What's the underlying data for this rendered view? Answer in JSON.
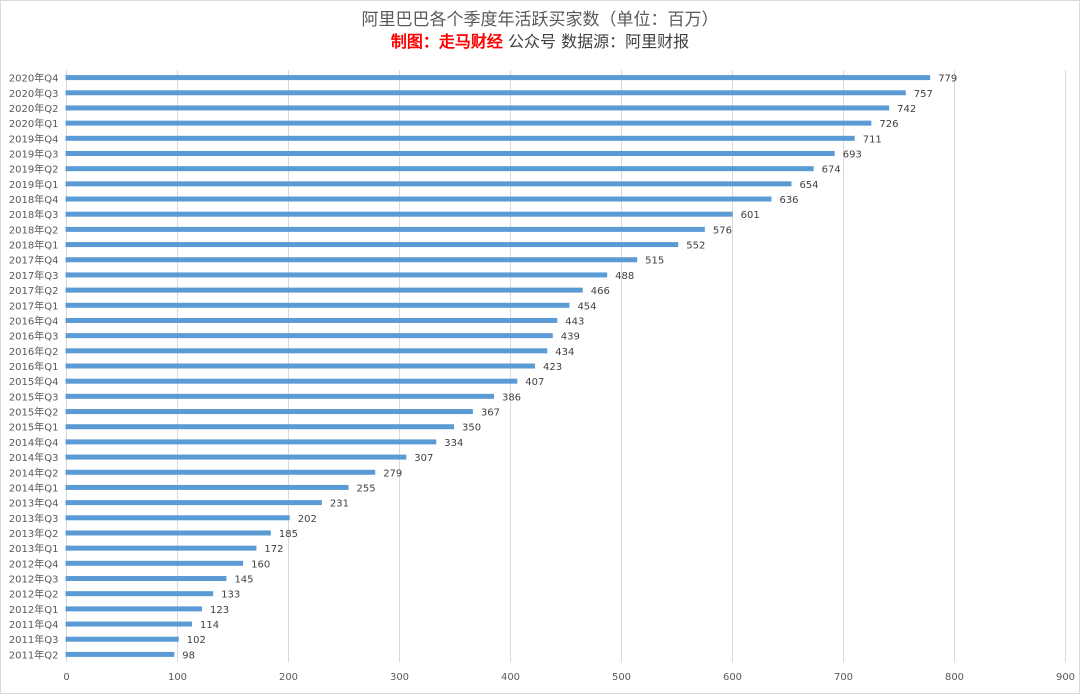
{
  "header": {
    "title": "阿里巴巴各个季度年活跃买家数（单位：百万）",
    "credit": "制图：走马财经",
    "subtitle_rest": " 公众号  数据源：阿里财报"
  },
  "chart_data": {
    "type": "bar",
    "orientation": "horizontal",
    "title": "阿里巴巴各个季度年活跃买家数（单位：百万）",
    "categories": [
      "2020年Q4",
      "2020年Q3",
      "2020年Q2",
      "2020年Q1",
      "2019年Q4",
      "2019年Q3",
      "2019年Q2",
      "2019年Q1",
      "2018年Q4",
      "2018年Q3",
      "2018年Q2",
      "2018年Q1",
      "2017年Q4",
      "2017年Q3",
      "2017年Q2",
      "2017年Q1",
      "2016年Q4",
      "2016年Q3",
      "2016年Q2",
      "2016年Q1",
      "2015年Q4",
      "2015年Q3",
      "2015年Q2",
      "2015年Q1",
      "2014年Q4",
      "2014年Q3",
      "2014年Q2",
      "2014年Q1",
      "2013年Q4",
      "2013年Q3",
      "2013年Q2",
      "2013年Q1",
      "2012年Q4",
      "2012年Q3",
      "2012年Q2",
      "2012年Q1",
      "2011年Q4",
      "2011年Q3",
      "2011年Q2"
    ],
    "values": [
      779,
      757,
      742,
      726,
      711,
      693,
      674,
      654,
      636,
      601,
      576,
      552,
      515,
      488,
      466,
      454,
      443,
      439,
      434,
      423,
      407,
      386,
      367,
      350,
      334,
      307,
      279,
      255,
      231,
      202,
      185,
      172,
      160,
      145,
      133,
      123,
      114,
      102,
      98
    ],
    "xlim": [
      0,
      900
    ],
    "xticks": [
      "0",
      "100",
      "200",
      "300",
      "400",
      "500",
      "600",
      "700",
      "800",
      "900"
    ],
    "grid": true,
    "color": "#5b9bd5"
  }
}
